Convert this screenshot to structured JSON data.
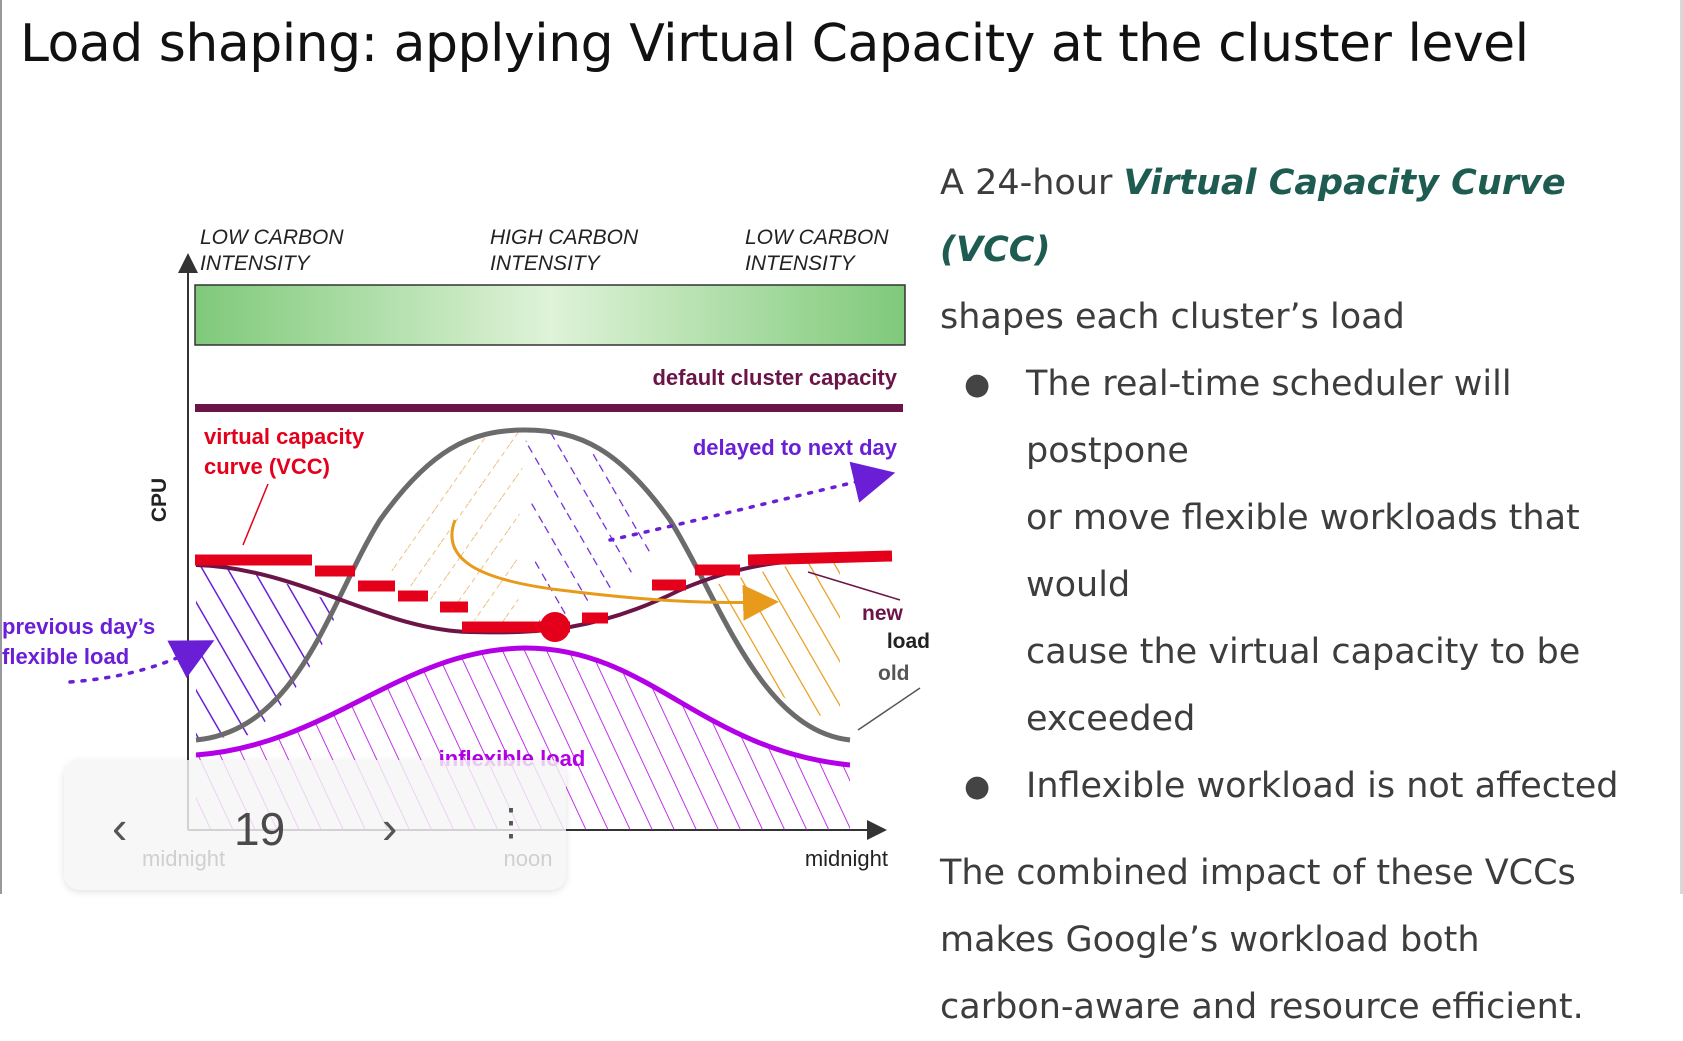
{
  "slide": {
    "title": "Load shaping: applying Virtual Capacity at the cluster level"
  },
  "diagram": {
    "carbon_bands": [
      {
        "line1": "LOW CARBON",
        "line2": "INTENSITY"
      },
      {
        "line1": "HIGH CARBON",
        "line2": "INTENSITY"
      },
      {
        "line1": "LOW CARBON",
        "line2": "INTENSITY"
      }
    ],
    "y_axis_label": "CPU",
    "x_ticks": [
      "midnight",
      "noon",
      "midnight"
    ],
    "labels": {
      "default_capacity": "default cluster capacity",
      "vcc_line1": "virtual capacity",
      "vcc_line2": "curve (VCC)",
      "delayed": "delayed to next day",
      "prev_line1": "previous day’s",
      "prev_line2": "flexible load",
      "new": "new",
      "load": "load",
      "old": "old",
      "inflexible": "inflexible load"
    },
    "colors": {
      "capacity_line": "#6b1447",
      "vcc": "#e4001b",
      "flexible": "#6a1fd6",
      "inflexible": "#b300e6",
      "shifted": "#e89a1a",
      "band_light": "#dff3d8",
      "band_dark": "#7fc97a"
    }
  },
  "notes": {
    "intro_prefix": "A 24-hour ",
    "intro_term": "Virtual Capacity Curve (VCC)",
    "intro_suffix": "shapes each cluster’s load",
    "bullets": [
      {
        "lines": [
          "The real-time scheduler will postpone",
          "or move flexible workloads that would",
          "cause the virtual capacity to be",
          "exceeded"
        ]
      },
      {
        "lines": [
          "Inflexible workload is not affected"
        ]
      }
    ],
    "bullet_glyph": "●",
    "combined": [
      "The combined impact of these VCCs",
      "makes Google’s workload both",
      "carbon-aware and resource efficient."
    ]
  },
  "nav": {
    "prev_icon": "‹",
    "page_number": "19",
    "next_icon": "›",
    "more_icon": "⋮"
  }
}
